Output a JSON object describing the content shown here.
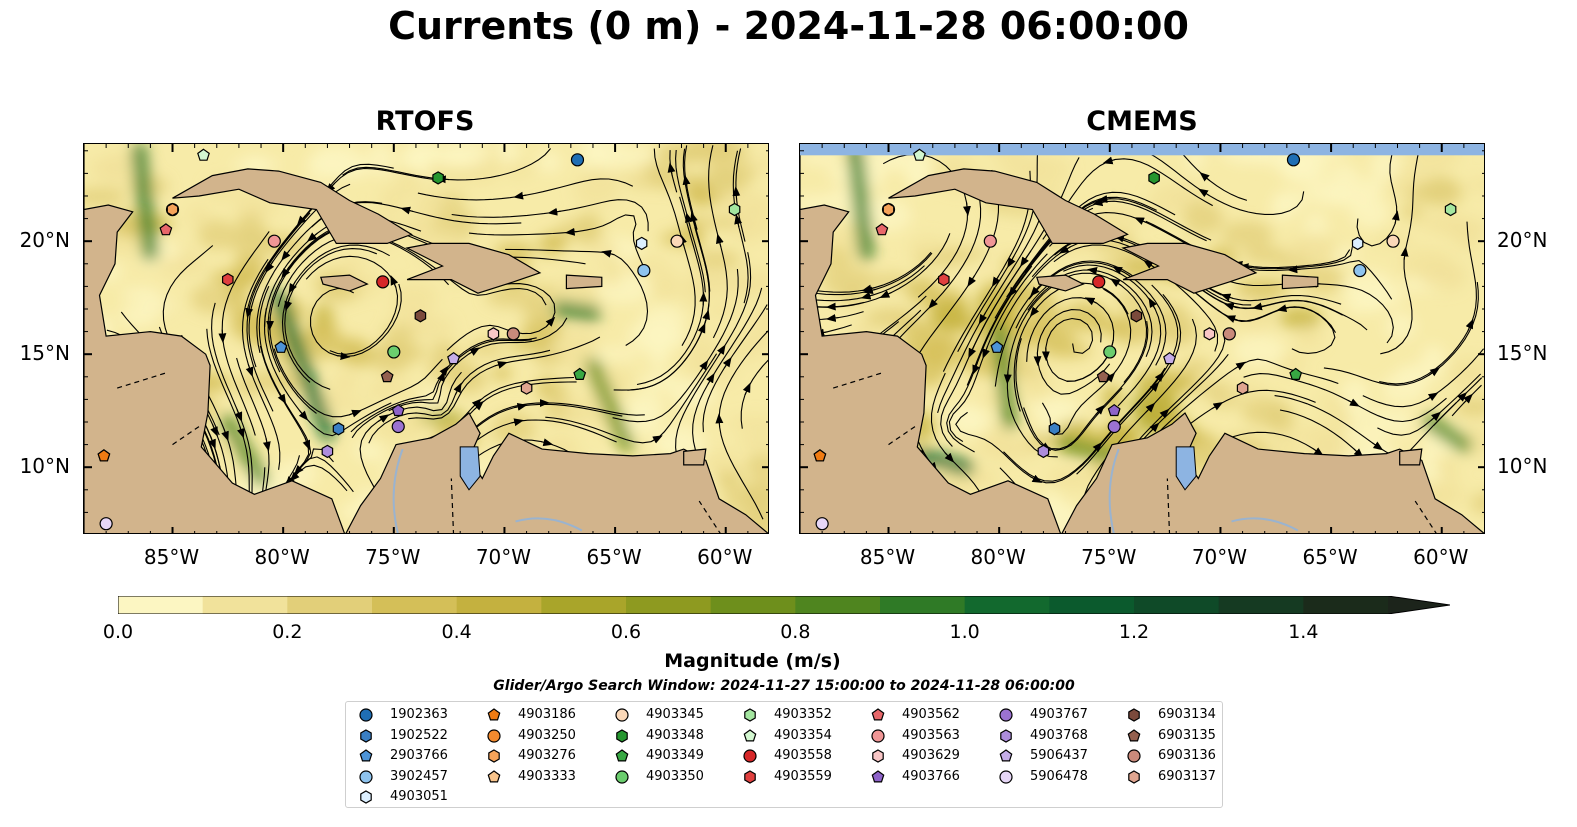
{
  "title": "Currents (0 m) - 2024-11-28 06:00:00",
  "panels": [
    {
      "title": "RTOFS"
    },
    {
      "title": "CMEMS"
    }
  ],
  "lon_ticks": [
    "85°W",
    "80°W",
    "75°W",
    "70°W",
    "65°W",
    "60°W"
  ],
  "lat_ticks": [
    "20°N",
    "15°N",
    "10°N"
  ],
  "colorbar": {
    "label": "Magnitude (m/s)",
    "ticks": [
      "0.0",
      "0.2",
      "0.4",
      "0.6",
      "0.8",
      "1.0",
      "1.2",
      "1.4"
    ],
    "range": [
      0.0,
      1.5
    ],
    "extend": "max",
    "colors": [
      "#fcf6c2",
      "#f1e29b",
      "#e2cf79",
      "#d4bf58",
      "#c4b13f",
      "#a9a52a",
      "#8e9a20",
      "#6e8f1c",
      "#4f851f",
      "#2f7a26",
      "#12692e",
      "#0b5a2d",
      "#0f4a28",
      "#153a22",
      "#1b2b1b",
      "#1c241b"
    ]
  },
  "search_window": "Glider/Argo Search Window: 2024-11-27 15:00:00 to 2024-11-28 06:00:00",
  "colors": {
    "land": "#d2b48c",
    "ocean_low": "#f7eba8",
    "lake": "#8db4e2",
    "river": "#9ab3cf"
  },
  "legend": [
    {
      "id": "1902363",
      "color": "#1f6eb4",
      "marker": "circle"
    },
    {
      "id": "1902522",
      "color": "#3a7fc4",
      "marker": "hexagon"
    },
    {
      "id": "2903766",
      "color": "#4d94d8",
      "marker": "pentagon"
    },
    {
      "id": "3902457",
      "color": "#8ec3ee",
      "marker": "circle"
    },
    {
      "id": "4903051",
      "color": "#dcefff",
      "marker": "hexagon"
    },
    {
      "id": "4903186",
      "color": "#f07b12",
      "marker": "pentagon"
    },
    {
      "id": "4903250",
      "color": "#f28a2e",
      "marker": "circle"
    },
    {
      "id": "4903276",
      "color": "#f5a35a",
      "marker": "hexagon"
    },
    {
      "id": "4903333",
      "color": "#f8c48c",
      "marker": "pentagon"
    },
    {
      "id": "4903345",
      "color": "#fbd8b8",
      "marker": "circle"
    },
    {
      "id": "4903348",
      "color": "#25962f",
      "marker": "hexagon"
    },
    {
      "id": "4903349",
      "color": "#38a843",
      "marker": "pentagon"
    },
    {
      "id": "4903350",
      "color": "#6bcd6e",
      "marker": "circle"
    },
    {
      "id": "4903352",
      "color": "#a4e6a0",
      "marker": "hexagon"
    },
    {
      "id": "4903354",
      "color": "#d3f7d0",
      "marker": "pentagon"
    },
    {
      "id": "4903558",
      "color": "#d62728",
      "marker": "circle"
    },
    {
      "id": "4903559",
      "color": "#e0403f",
      "marker": "hexagon"
    },
    {
      "id": "4903562",
      "color": "#e8676a",
      "marker": "pentagon"
    },
    {
      "id": "4903563",
      "color": "#f09696",
      "marker": "circle"
    },
    {
      "id": "4903629",
      "color": "#f8c6c6",
      "marker": "hexagon"
    },
    {
      "id": "4903766",
      "color": "#8e63c9",
      "marker": "pentagon"
    },
    {
      "id": "4903767",
      "color": "#9b72d1",
      "marker": "circle"
    },
    {
      "id": "4903768",
      "color": "#ad8ddc",
      "marker": "hexagon"
    },
    {
      "id": "5906437",
      "color": "#c6aee8",
      "marker": "pentagon"
    },
    {
      "id": "5906478",
      "color": "#e6d6f6",
      "marker": "circle"
    },
    {
      "id": "6903134",
      "color": "#7b4a3c",
      "marker": "hexagon"
    },
    {
      "id": "6903135",
      "color": "#94604f",
      "marker": "pentagon"
    },
    {
      "id": "6903136",
      "color": "#c98a7b",
      "marker": "circle"
    },
    {
      "id": "6903137",
      "color": "#e0a590",
      "marker": "hexagon"
    }
  ],
  "floats": [
    {
      "id": "1902363",
      "lon": -66.7,
      "lat": 23.6
    },
    {
      "id": "1902522",
      "lon": -77.5,
      "lat": 11.7
    },
    {
      "id": "2903766",
      "lon": -80.1,
      "lat": 15.3
    },
    {
      "id": "3902457",
      "lon": -63.7,
      "lat": 18.7
    },
    {
      "id": "4903051",
      "lon": -63.8,
      "lat": 19.9
    },
    {
      "id": "4903186",
      "lon": -88.1,
      "lat": 10.5
    },
    {
      "id": "4903250",
      "lon": -85.0,
      "lat": 21.4
    },
    {
      "id": "4903276",
      "lon": -85.0,
      "lat": 21.4
    },
    {
      "id": "4903333",
      "lon": -62.2,
      "lat": 20.0
    },
    {
      "id": "4903345",
      "lon": -62.2,
      "lat": 20.0
    },
    {
      "id": "4903348",
      "lon": -73.0,
      "lat": 22.8
    },
    {
      "id": "4903349",
      "lon": -66.6,
      "lat": 14.1
    },
    {
      "id": "4903350",
      "lon": -75.0,
      "lat": 15.1
    },
    {
      "id": "4903352",
      "lon": -59.6,
      "lat": 21.4
    },
    {
      "id": "4903354",
      "lon": -83.6,
      "lat": 23.8
    },
    {
      "id": "4903558",
      "lon": -75.5,
      "lat": 18.2
    },
    {
      "id": "4903559",
      "lon": -82.5,
      "lat": 18.3
    },
    {
      "id": "4903562",
      "lon": -85.3,
      "lat": 20.5
    },
    {
      "id": "4903563",
      "lon": -80.4,
      "lat": 20.0
    },
    {
      "id": "4903629",
      "lon": -70.5,
      "lat": 15.9
    },
    {
      "id": "4903766",
      "lon": -74.8,
      "lat": 12.5
    },
    {
      "id": "4903767",
      "lon": -74.8,
      "lat": 11.8
    },
    {
      "id": "4903768",
      "lon": -78.0,
      "lat": 10.7
    },
    {
      "id": "5906437",
      "lon": -72.3,
      "lat": 14.8
    },
    {
      "id": "5906478",
      "lon": -88.0,
      "lat": 7.5
    },
    {
      "id": "6903134",
      "lon": -73.8,
      "lat": 16.7
    },
    {
      "id": "6903135",
      "lon": -75.3,
      "lat": 14.0
    },
    {
      "id": "6903136",
      "lon": -69.6,
      "lat": 15.9
    },
    {
      "id": "6903137",
      "lon": -69.0,
      "lat": 13.5
    },
    {
      "id": "4903186",
      "lon": -88.1,
      "lat": 10.5
    }
  ]
}
